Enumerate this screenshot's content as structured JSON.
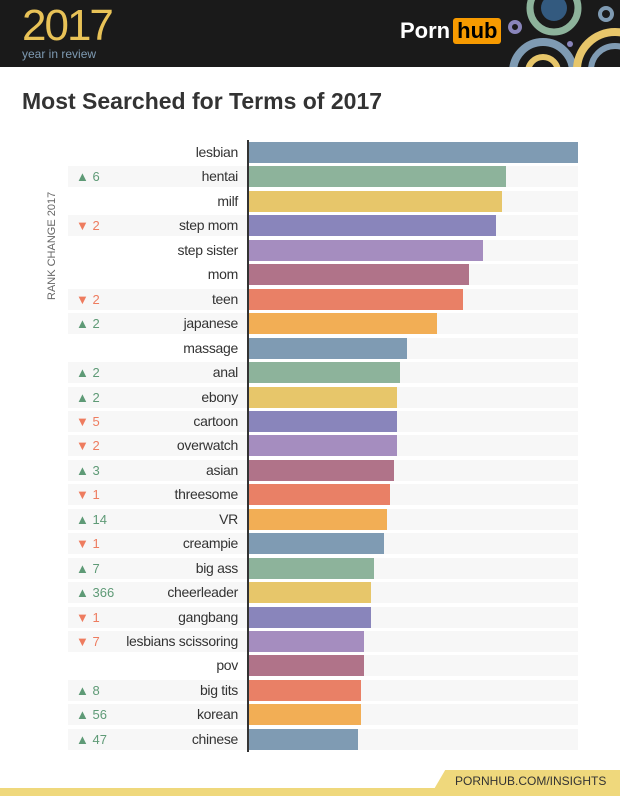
{
  "header": {
    "year": "2017",
    "subtitle": "year in review",
    "logo_left": "Porn",
    "logo_right": "hub"
  },
  "chart_data": {
    "type": "bar",
    "orientation": "horizontal",
    "title": "Most Searched for Terms of 2017",
    "ylabel": "RANK CHANGE 2017",
    "value_unit": "relative search volume (lesbian = 100), estimated",
    "colors": [
      "#7f9bb3",
      "#8db39b",
      "#e7c66a",
      "#8985bb",
      "#a58dbf",
      "#b07389",
      "#e98066",
      "#f2ae55"
    ],
    "up_color": "#5e9a76",
    "down_color": "#ee7c5f",
    "categories": [
      "lesbian",
      "hentai",
      "milf",
      "step mom",
      "step sister",
      "mom",
      "teen",
      "japanese",
      "massage",
      "anal",
      "ebony",
      "cartoon",
      "overwatch",
      "asian",
      "threesome",
      "VR",
      "creampie",
      "big ass",
      "cheerleader",
      "gangbang",
      "lesbians scissoring",
      "pov",
      "big tits",
      "korean",
      "chinese"
    ],
    "values": [
      100,
      78,
      77,
      75,
      71,
      67,
      65,
      57,
      48,
      46,
      45,
      45,
      45,
      44,
      43,
      42,
      41,
      38,
      37,
      37,
      35,
      35,
      34,
      34,
      33
    ],
    "rank_change": [
      null,
      {
        "dir": "up",
        "n": "6"
      },
      null,
      {
        "dir": "down",
        "n": "2"
      },
      null,
      null,
      {
        "dir": "down",
        "n": "2"
      },
      {
        "dir": "up",
        "n": "2"
      },
      null,
      {
        "dir": "up",
        "n": "2"
      },
      {
        "dir": "up",
        "n": "2"
      },
      {
        "dir": "down",
        "n": "5"
      },
      {
        "dir": "down",
        "n": "2"
      },
      {
        "dir": "up",
        "n": "3"
      },
      {
        "dir": "down",
        "n": "1"
      },
      {
        "dir": "up",
        "n": "14"
      },
      {
        "dir": "down",
        "n": "1"
      },
      {
        "dir": "up",
        "n": "7"
      },
      {
        "dir": "up",
        "n": "366"
      },
      {
        "dir": "down",
        "n": "1"
      },
      {
        "dir": "down",
        "n": "7"
      },
      null,
      {
        "dir": "up",
        "n": "8"
      },
      {
        "dir": "up",
        "n": "56"
      },
      {
        "dir": "up",
        "n": "47"
      }
    ]
  },
  "footer": {
    "link": "PORNHUB.COM/INSIGHTS"
  }
}
